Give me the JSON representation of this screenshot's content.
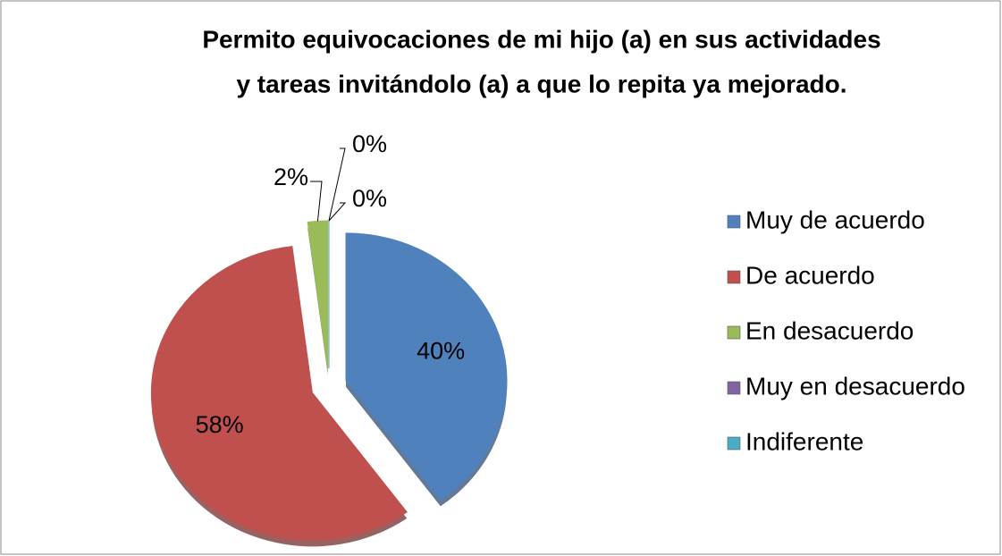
{
  "chart_data": {
    "type": "pie",
    "title": [
      "Permito equivocaciones de mi hijo (a) en sus actividades",
      "y tareas invitándolo (a) a que lo repita ya mejorado."
    ],
    "categories": [
      "Muy de acuerdo",
      "De acuerdo",
      "En desacuerdo",
      "Muy en desacuerdo",
      "Indiferente"
    ],
    "values": [
      40,
      58,
      2,
      0,
      0
    ],
    "value_labels": [
      "40%",
      "58%",
      "2%",
      "0%",
      "0%"
    ],
    "colors": [
      "#4f81bd",
      "#c0504d",
      "#9bbb59",
      "#8064a2",
      "#4bacc6"
    ],
    "legend": "right"
  }
}
